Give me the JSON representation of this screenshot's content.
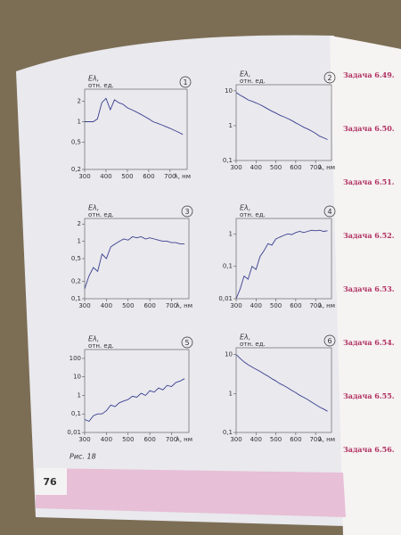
{
  "chart_data": [
    {
      "type": "line",
      "panel_label": "1",
      "y_label": "Eλ,",
      "y_unit": "отн. ед.",
      "x_label": "λ, нм",
      "log_y": true,
      "color": "#3a3f8f",
      "x": [
        300,
        320,
        340,
        360,
        380,
        400,
        420,
        440,
        460,
        480,
        500,
        520,
        540,
        560,
        580,
        600,
        620,
        640,
        660,
        680,
        700,
        720,
        740,
        760
      ],
      "values": [
        1.0,
        1.0,
        1.0,
        1.1,
        1.9,
        2.2,
        1.5,
        2.1,
        1.9,
        1.8,
        1.6,
        1.5,
        1.4,
        1.3,
        1.2,
        1.1,
        1.0,
        0.95,
        0.9,
        0.85,
        0.8,
        0.75,
        0.7,
        0.65
      ],
      "xlim": [
        300,
        780
      ],
      "xticks": [
        300,
        400,
        500,
        600,
        700
      ],
      "ylim": [
        0.2,
        3
      ],
      "yticks": [
        {
          "value": 0.2,
          "label": "0,2"
        },
        {
          "value": 0.5,
          "label": "0,5"
        },
        1,
        2
      ]
    },
    {
      "type": "line",
      "panel_label": "2",
      "y_label": "Eλ,",
      "y_unit": "отн. ед.",
      "x_label": "λ, нм",
      "log_y": true,
      "color": "#3a3f8f",
      "x": [
        300,
        320,
        340,
        360,
        380,
        400,
        420,
        440,
        460,
        480,
        500,
        520,
        540,
        560,
        580,
        600,
        620,
        640,
        660,
        680,
        700,
        720,
        740,
        760
      ],
      "values": [
        9,
        7.5,
        6.5,
        5.5,
        5,
        4.5,
        4,
        3.5,
        3,
        2.6,
        2.3,
        2,
        1.8,
        1.6,
        1.4,
        1.2,
        1.05,
        0.9,
        0.8,
        0.7,
        0.6,
        0.5,
        0.45,
        0.4
      ],
      "xlim": [
        300,
        780
      ],
      "xticks": [
        300,
        400,
        500,
        600,
        700
      ],
      "ylim": [
        0.1,
        15
      ],
      "yticks": [
        {
          "value": 0.1,
          "label": "0,1"
        },
        1,
        10
      ]
    },
    {
      "type": "line",
      "panel_label": "3",
      "y_label": "Eλ,",
      "y_unit": "отн. ед.",
      "x_label": "λ, нм",
      "log_y": true,
      "color": "#3a3f8f",
      "x": [
        300,
        320,
        340,
        360,
        380,
        400,
        420,
        440,
        460,
        480,
        500,
        520,
        540,
        560,
        580,
        600,
        620,
        640,
        660,
        680,
        700,
        720,
        740,
        760
      ],
      "values": [
        0.15,
        0.25,
        0.35,
        0.3,
        0.6,
        0.5,
        0.8,
        0.9,
        1.0,
        1.1,
        1.05,
        1.2,
        1.15,
        1.2,
        1.1,
        1.15,
        1.1,
        1.05,
        1.0,
        1.0,
        0.95,
        0.95,
        0.9,
        0.9
      ],
      "xlim": [
        300,
        780
      ],
      "xticks": [
        300,
        400,
        500,
        600,
        700
      ],
      "ylim": [
        0.1,
        2.5
      ],
      "yticks": [
        {
          "value": 0.1,
          "label": "0,1"
        },
        {
          "value": 0.2,
          "label": "0,2"
        },
        {
          "value": 0.5,
          "label": "0,5"
        },
        1,
        2
      ]
    },
    {
      "type": "line",
      "panel_label": "4",
      "y_label": "Eλ,",
      "y_unit": "отн. ед.",
      "x_label": "λ, нм",
      "log_y": true,
      "color": "#3a3f8f",
      "x": [
        300,
        320,
        340,
        360,
        380,
        400,
        420,
        440,
        460,
        480,
        500,
        520,
        540,
        560,
        580,
        600,
        620,
        640,
        660,
        680,
        700,
        720,
        740,
        760
      ],
      "values": [
        0.01,
        0.02,
        0.05,
        0.04,
        0.1,
        0.08,
        0.2,
        0.3,
        0.5,
        0.45,
        0.7,
        0.8,
        0.9,
        1.0,
        0.95,
        1.1,
        1.2,
        1.1,
        1.2,
        1.3,
        1.25,
        1.3,
        1.2,
        1.25
      ],
      "xlim": [
        300,
        780
      ],
      "xticks": [
        300,
        400,
        500,
        600,
        700
      ],
      "ylim": [
        0.01,
        3
      ],
      "yticks": [
        {
          "value": 0.01,
          "label": "0,01"
        },
        {
          "value": 0.1,
          "label": "0,1"
        },
        1
      ]
    },
    {
      "type": "line",
      "panel_label": "5",
      "y_label": "Eλ,",
      "y_unit": "отн. ед.",
      "x_label": "λ, нм",
      "log_y": true,
      "color": "#3a3f8f",
      "x": [
        300,
        320,
        340,
        360,
        380,
        400,
        420,
        440,
        460,
        480,
        500,
        520,
        540,
        560,
        580,
        600,
        620,
        640,
        660,
        680,
        700,
        720,
        740,
        760
      ],
      "values": [
        0.05,
        0.04,
        0.08,
        0.1,
        0.1,
        0.15,
        0.3,
        0.25,
        0.4,
        0.5,
        0.6,
        0.9,
        0.8,
        1.3,
        1.0,
        1.8,
        1.5,
        2.5,
        2.0,
        3.5,
        3,
        5,
        6,
        8
      ],
      "xlim": [
        300,
        780
      ],
      "xticks": [
        300,
        400,
        500,
        600,
        700
      ],
      "ylim": [
        0.01,
        300
      ],
      "yticks": [
        {
          "value": 0.01,
          "label": "0,01"
        },
        {
          "value": 0.1,
          "label": "0,1"
        },
        1,
        10,
        100
      ]
    },
    {
      "type": "line",
      "panel_label": "6",
      "y_label": "Eλ,",
      "y_unit": "отн. ед.",
      "x_label": "λ, нм",
      "log_y": true,
      "color": "#3a3f8f",
      "x": [
        300,
        320,
        340,
        360,
        380,
        400,
        420,
        440,
        460,
        480,
        500,
        520,
        540,
        560,
        580,
        600,
        620,
        640,
        660,
        680,
        700,
        720,
        740,
        760
      ],
      "values": [
        10,
        8,
        6.5,
        5.5,
        4.8,
        4.2,
        3.7,
        3.2,
        2.8,
        2.4,
        2.1,
        1.8,
        1.6,
        1.4,
        1.2,
        1.05,
        0.9,
        0.8,
        0.7,
        0.6,
        0.52,
        0.45,
        0.4,
        0.35
      ],
      "xlim": [
        300,
        780
      ],
      "xticks": [
        300,
        400,
        500,
        600,
        700
      ],
      "ylim": [
        0.1,
        15
      ],
      "yticks": [
        {
          "value": 0.1,
          "label": "0,1"
        },
        1,
        10
      ]
    }
  ],
  "figure_caption": "Рис. 18",
  "page_number": "76",
  "side_text": [
    "Задача 6.49.",
    "Задача 6.50.",
    "Задача 6.51.",
    "Задача 6.52.",
    "Задача 6.53.",
    "Задача 6.54.",
    "Задача 6.55.",
    "Задача 6.56."
  ]
}
